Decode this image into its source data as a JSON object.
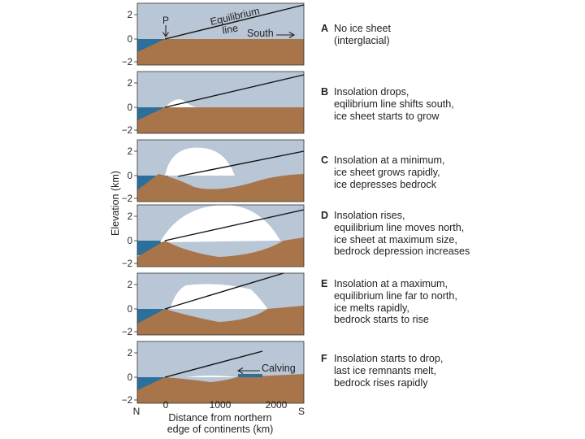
{
  "axis": {
    "ylabel": "Elevation (km)",
    "ytick_labels": [
      "2",
      "0",
      "−2"
    ],
    "xtick_labels": [
      "0",
      "1000",
      "2000"
    ],
    "x_end_left": "N",
    "x_end_right": "S",
    "xlabel_line1": "Distance from northern",
    "xlabel_line2": "edge of continents (km)"
  },
  "annotations": {
    "point_p": "P",
    "equilibrium_line_1": "Equilibrium",
    "equilibrium_line_2": "line",
    "south": "South",
    "calving": "Calving"
  },
  "colors": {
    "sky": "#b9c6d6",
    "ocean": "#2b6f9a",
    "bedrock": "#a8754a",
    "ice": "#ffffff"
  },
  "panels": [
    {
      "letter": "A",
      "lines": [
        "No ice sheet",
        "(interglacial)"
      ]
    },
    {
      "letter": "B",
      "lines": [
        "Insolation drops,",
        "eqilibrium line shifts south,",
        "ice sheet starts to grow"
      ]
    },
    {
      "letter": "C",
      "lines": [
        "Insolation at a minimum,",
        "ice sheet grows rapidly,",
        "ice depresses bedrock"
      ]
    },
    {
      "letter": "D",
      "lines": [
        "Insolation rises,",
        "equilibrium line moves north,",
        "ice sheet at maximum size,",
        "bedrock depression increases"
      ]
    },
    {
      "letter": "E",
      "lines": [
        "Insolation at a maximum,",
        "equilibrium line far to north,",
        "ice melts rapidly,",
        "bedrock starts to rise"
      ]
    },
    {
      "letter": "F",
      "lines": [
        "Insolation starts to drop,",
        "last ice remnants melt,",
        "bedrock rises rapidly"
      ]
    }
  ]
}
